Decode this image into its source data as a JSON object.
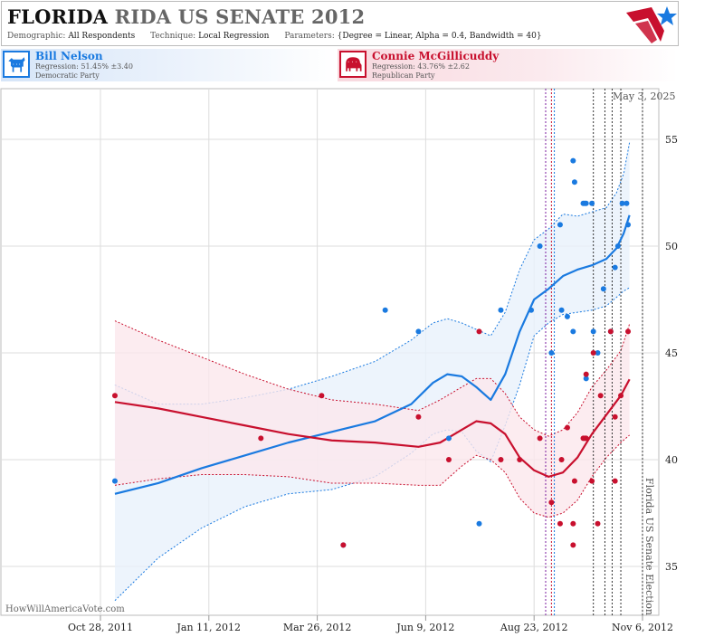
{
  "header": {
    "title_bold": "FLORIDA",
    "title_rest": "RIDA US SENATE 2012",
    "demographic_label": "Demographic:",
    "demographic_value": "All Respondents",
    "technique_label": "Technique:",
    "technique_value": "Local Regression",
    "parameters_label": "Parameters:",
    "parameters_value": "{Degree = Linear, Alpha = 0.4, Bandwidth = 40}"
  },
  "candidates": {
    "dem": {
      "name": "Bill Nelson",
      "regression": "Regression: 51.45% ±3.40",
      "party": "Democratic Party",
      "icon": "donkey-icon",
      "color": "#1a7ae0"
    },
    "rep": {
      "name": "Connie McGillicuddy",
      "regression": "Regression: 43.76% ±2.62",
      "party": "Republican Party",
      "icon": "elephant-icon",
      "color": "#c8102e"
    }
  },
  "watermark": "HowWillAmericaVote.com",
  "date_stamp": "May 3, 2025",
  "event_label": "Florida US Senate Election",
  "colors": {
    "dem": "#1a7ae0",
    "rep": "#c8102e",
    "dem_band": "#e9f1fb",
    "rep_band": "#fbe7ec",
    "grid": "#dddddd"
  },
  "chart_data": {
    "type": "scatter",
    "x_ticks": [
      "Oct 28, 2011",
      "Jan 11, 2012",
      "Mar 26, 2012",
      "Jun 9, 2012",
      "Aug 23, 2012",
      "Nov 6, 2012"
    ],
    "ylim": [
      32.5,
      57.5
    ],
    "y_ticks": [
      35,
      40,
      45,
      50,
      55
    ],
    "grid": true,
    "series": [
      {
        "name": "Bill Nelson",
        "party": "dem",
        "points": [
          [
            "2011-11-07",
            39
          ],
          [
            "2012-04-13",
            36
          ],
          [
            "2012-05-12",
            47
          ],
          [
            "2012-06-04",
            46
          ],
          [
            "2012-06-25",
            41
          ],
          [
            "2012-07-16",
            37
          ],
          [
            "2012-07-31",
            47
          ],
          [
            "2012-08-21",
            47
          ],
          [
            "2012-08-27",
            50
          ],
          [
            "2012-09-04",
            45
          ],
          [
            "2012-09-10",
            51
          ],
          [
            "2012-09-11",
            47
          ],
          [
            "2012-09-15",
            46.7
          ],
          [
            "2012-09-19",
            46
          ],
          [
            "2012-09-19",
            54
          ],
          [
            "2012-09-20",
            53
          ],
          [
            "2012-09-26",
            52
          ],
          [
            "2012-09-27",
            52
          ],
          [
            "2012-09-28",
            52
          ],
          [
            "2012-09-28",
            43.8
          ],
          [
            "2012-10-02",
            52
          ],
          [
            "2012-10-03",
            46
          ],
          [
            "2012-10-06",
            45
          ],
          [
            "2012-10-10",
            48
          ],
          [
            "2012-10-15",
            46
          ],
          [
            "2012-10-18",
            49
          ],
          [
            "2012-10-20",
            50
          ],
          [
            "2012-10-23",
            52
          ],
          [
            "2012-10-26",
            52
          ],
          [
            "2012-10-27",
            51
          ]
        ],
        "trend": [
          [
            "2011-11-07",
            38.4
          ],
          [
            "2011-12-07",
            38.9
          ],
          [
            "2012-01-06",
            39.6
          ],
          [
            "2012-02-05",
            40.2
          ],
          [
            "2012-03-06",
            40.8
          ],
          [
            "2012-04-05",
            41.3
          ],
          [
            "2012-05-05",
            41.8
          ],
          [
            "2012-05-30",
            42.6
          ],
          [
            "2012-06-14",
            43.6
          ],
          [
            "2012-06-24",
            44.0
          ],
          [
            "2012-07-04",
            43.9
          ],
          [
            "2012-07-14",
            43.4
          ],
          [
            "2012-07-24",
            42.8
          ],
          [
            "2012-08-03",
            44.0
          ],
          [
            "2012-08-13",
            46.0
          ],
          [
            "2012-08-23",
            47.5
          ],
          [
            "2012-09-02",
            48.0
          ],
          [
            "2012-09-12",
            48.6
          ],
          [
            "2012-09-22",
            48.9
          ],
          [
            "2012-10-02",
            49.1
          ],
          [
            "2012-10-12",
            49.4
          ],
          [
            "2012-10-19",
            49.9
          ],
          [
            "2012-10-24",
            50.6
          ],
          [
            "2012-10-28",
            51.45
          ]
        ],
        "band": [
          [
            33.4,
            43.5
          ],
          [
            35.4,
            42.6
          ],
          [
            36.8,
            42.6
          ],
          [
            37.8,
            42.9
          ],
          [
            38.4,
            43.3
          ],
          [
            38.6,
            43.9
          ],
          [
            39.2,
            44.6
          ],
          [
            40.3,
            45.6
          ],
          [
            41.2,
            46.4
          ],
          [
            41.4,
            46.6
          ],
          [
            41.3,
            46.4
          ],
          [
            40.4,
            46.1
          ],
          [
            39.9,
            45.8
          ],
          [
            41.6,
            46.9
          ],
          [
            43.5,
            48.9
          ],
          [
            45.8,
            50.3
          ],
          [
            46.4,
            50.8
          ],
          [
            46.8,
            51.5
          ],
          [
            46.9,
            51.4
          ],
          [
            47.0,
            51.6
          ],
          [
            47.2,
            51.8
          ],
          [
            47.6,
            52.5
          ],
          [
            47.9,
            53.4
          ],
          [
            48.05,
            54.85
          ]
        ]
      },
      {
        "name": "Connie McGillicuddy",
        "party": "rep",
        "points": [
          [
            "2011-11-07",
            43
          ],
          [
            "2012-02-16",
            41
          ],
          [
            "2012-03-29",
            43
          ],
          [
            "2012-04-13",
            36
          ],
          [
            "2012-06-04",
            42
          ],
          [
            "2012-06-25",
            40
          ],
          [
            "2012-07-16",
            46
          ],
          [
            "2012-07-31",
            40
          ],
          [
            "2012-08-13",
            40
          ],
          [
            "2012-08-27",
            41
          ],
          [
            "2012-09-04",
            38
          ],
          [
            "2012-09-10",
            37
          ],
          [
            "2012-09-11",
            40
          ],
          [
            "2012-09-15",
            41.5
          ],
          [
            "2012-09-19",
            37
          ],
          [
            "2012-09-19",
            36
          ],
          [
            "2012-09-20",
            39
          ],
          [
            "2012-09-26",
            41
          ],
          [
            "2012-09-27",
            41
          ],
          [
            "2012-09-28",
            41
          ],
          [
            "2012-09-28",
            44
          ],
          [
            "2012-10-02",
            39
          ],
          [
            "2012-10-03",
            45
          ],
          [
            "2012-10-06",
            37
          ],
          [
            "2012-10-08",
            43
          ],
          [
            "2012-10-15",
            46
          ],
          [
            "2012-10-18",
            39
          ],
          [
            "2012-10-18",
            42
          ],
          [
            "2012-10-22",
            43
          ],
          [
            "2012-10-27",
            46
          ]
        ],
        "trend": [
          [
            "2011-11-07",
            42.7
          ],
          [
            "2011-12-07",
            42.4
          ],
          [
            "2012-01-06",
            42.0
          ],
          [
            "2012-02-05",
            41.6
          ],
          [
            "2012-03-06",
            41.2
          ],
          [
            "2012-04-05",
            40.9
          ],
          [
            "2012-05-05",
            40.8
          ],
          [
            "2012-06-04",
            40.6
          ],
          [
            "2012-06-19",
            40.8
          ],
          [
            "2012-07-04",
            41.4
          ],
          [
            "2012-07-14",
            41.8
          ],
          [
            "2012-07-24",
            41.7
          ],
          [
            "2012-08-03",
            41.2
          ],
          [
            "2012-08-13",
            40.1
          ],
          [
            "2012-08-23",
            39.5
          ],
          [
            "2012-09-02",
            39.2
          ],
          [
            "2012-09-12",
            39.4
          ],
          [
            "2012-09-22",
            40.1
          ],
          [
            "2012-10-02",
            41.2
          ],
          [
            "2012-10-12",
            42.1
          ],
          [
            "2012-10-22",
            43.0
          ],
          [
            "2012-10-28",
            43.76
          ]
        ],
        "band": [
          [
            38.8,
            46.5
          ],
          [
            39.1,
            45.6
          ],
          [
            39.3,
            44.8
          ],
          [
            39.3,
            44.0
          ],
          [
            39.2,
            43.3
          ],
          [
            38.9,
            42.8
          ],
          [
            38.9,
            42.6
          ],
          [
            38.8,
            42.3
          ],
          [
            38.8,
            42.8
          ],
          [
            39.7,
            43.4
          ],
          [
            40.2,
            43.8
          ],
          [
            40.0,
            43.8
          ],
          [
            39.4,
            43.1
          ],
          [
            38.2,
            42.0
          ],
          [
            37.5,
            41.4
          ],
          [
            37.3,
            41.1
          ],
          [
            37.5,
            41.4
          ],
          [
            38.1,
            42.2
          ],
          [
            39.2,
            43.4
          ],
          [
            40.1,
            44.2
          ],
          [
            40.8,
            45.1
          ],
          [
            41.15,
            46.35
          ]
        ]
      }
    ],
    "markers": [
      {
        "date": "2012-08-31",
        "color": "#7c1fa0"
      },
      {
        "date": "2012-09-04",
        "color": "#c8102e"
      },
      {
        "date": "2012-09-06",
        "color": "#1a7ae0"
      },
      {
        "date": "2012-10-03",
        "color": "#333333"
      },
      {
        "date": "2012-10-11",
        "color": "#333333"
      },
      {
        "date": "2012-10-16",
        "color": "#333333"
      },
      {
        "date": "2012-10-22",
        "color": "#333333"
      },
      {
        "date": "2012-11-06",
        "color": "#333333"
      }
    ]
  }
}
